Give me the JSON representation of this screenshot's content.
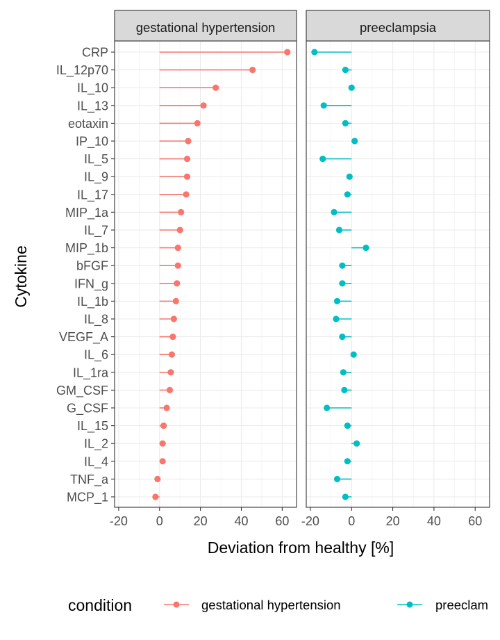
{
  "chart_data": {
    "type": "lollipop",
    "xlabel": "Deviation from healthy [%]",
    "ylabel": "Cytokine",
    "xlim": [
      -22,
      67
    ],
    "xticks": [
      -20,
      0,
      20,
      40,
      60
    ],
    "grid": true,
    "legend_position": "bottom",
    "legend_title": "condition",
    "categories": [
      "CRP",
      "IL_12p70",
      "IL_10",
      "IL_13",
      "eotaxin",
      "IP_10",
      "IL_5",
      "IL_9",
      "IL_17",
      "MIP_1a",
      "IL_7",
      "MIP_1b",
      "bFGF",
      "IFN_g",
      "IL_1b",
      "IL_8",
      "VEGF_A",
      "IL_6",
      "IL_1ra",
      "GM_CSF",
      "G_CSF",
      "IL_15",
      "IL_2",
      "IL_4",
      "TNF_a",
      "MCP_1"
    ],
    "panels": [
      {
        "name": "gestational hypertension",
        "color": "#F8766D",
        "values": [
          62.5,
          45.5,
          27.5,
          21.5,
          18.5,
          14.0,
          13.5,
          13.5,
          13.0,
          10.5,
          10.0,
          9.0,
          9.0,
          8.5,
          8.0,
          7.0,
          6.5,
          6.0,
          5.5,
          5.0,
          3.5,
          2.0,
          1.5,
          1.5,
          -1.0,
          -2.0
        ]
      },
      {
        "name": "preeclampsia",
        "color": "#00BFC4",
        "values": [
          -18.0,
          -3.0,
          0.0,
          -13.5,
          -3.0,
          1.5,
          -14.0,
          -1.0,
          -2.0,
          -8.5,
          -6.0,
          7.0,
          -4.5,
          -4.5,
          -7.0,
          -7.5,
          -4.5,
          1.0,
          -4.0,
          -3.5,
          -12.0,
          -2.0,
          2.5,
          -2.0,
          -7.0,
          -3.0
        ]
      }
    ],
    "legend_entries": [
      "gestational hypertension",
      "preeclam"
    ]
  }
}
